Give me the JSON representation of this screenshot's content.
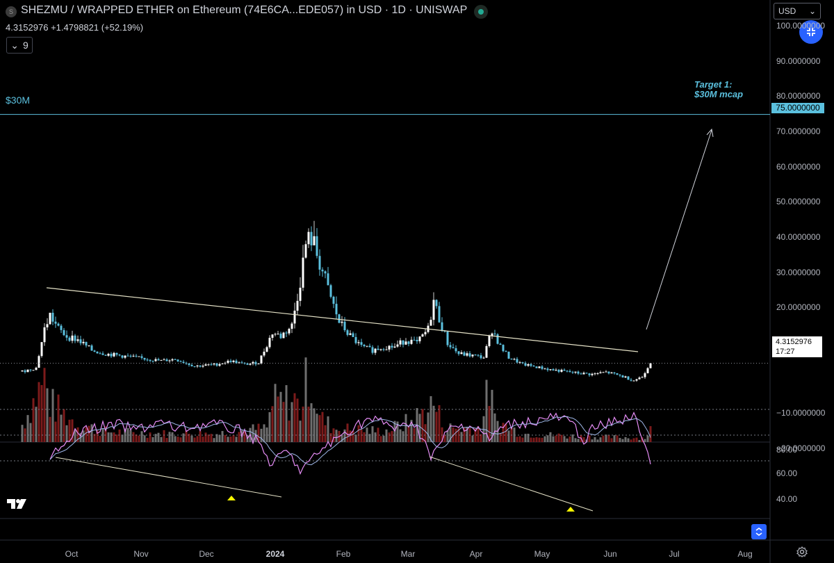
{
  "header": {
    "title": "SHEZMU / WRAPPED ETHER on Ethereum (74E6CA...EDE057) in USD · 1D · UNISWAP",
    "logo_letter": "S",
    "price": "4.3152976",
    "change": "+1.4798821",
    "change_pct": "(+52.19%)",
    "indicators_count": "9",
    "chevron": "⌄"
  },
  "currency_select": {
    "value": "USD",
    "arrow": "⌄"
  },
  "annotations": {
    "level_label": "$30M",
    "target_line1": "Target 1:",
    "target_line2": "$30M mcap",
    "target_badge": "75.0000000"
  },
  "price_badge": {
    "price": "4.3152976",
    "countdown": "17:27"
  },
  "rsi_axis": [
    "80.00",
    "60.00",
    "40.00"
  ],
  "chart_data": {
    "type": "candlestick",
    "title": "SHEZMU / WRAPPED ETHER on Ethereum (74E6CA...EDE057) in USD · 1D · UNISWAP",
    "y_ticks": [
      "100.0000000",
      "90.0000000",
      "80.0000000",
      "70.0000000",
      "60.0000000",
      "50.0000000",
      "40.0000000",
      "30.0000000",
      "20.0000000",
      "10.0000000",
      "−10.0000000",
      "−20.0000000"
    ],
    "y_tick_values": [
      100,
      90,
      80,
      70,
      60,
      50,
      40,
      30,
      20,
      10,
      -10,
      -20
    ],
    "ylim": [
      -27,
      103
    ],
    "x_ticks": [
      "Oct",
      "Nov",
      "Dec",
      "2024",
      "Feb",
      "Mar",
      "Apr",
      "May",
      "Jun",
      "Jul",
      "Aug"
    ],
    "close_anchors": [
      [
        0,
        2
      ],
      [
        5,
        3
      ],
      [
        8,
        14
      ],
      [
        10,
        18
      ],
      [
        13,
        14
      ],
      [
        16,
        12
      ],
      [
        20,
        11
      ],
      [
        25,
        8
      ],
      [
        30,
        7
      ],
      [
        40,
        6
      ],
      [
        50,
        5
      ],
      [
        55,
        5.5
      ],
      [
        62,
        3.5
      ],
      [
        70,
        4
      ],
      [
        75,
        5
      ],
      [
        80,
        4
      ],
      [
        85,
        4.5
      ],
      [
        90,
        13
      ],
      [
        93,
        12
      ],
      [
        97,
        15
      ],
      [
        100,
        28
      ],
      [
        102,
        38
      ],
      [
        104,
        40
      ],
      [
        107,
        33
      ],
      [
        110,
        25
      ],
      [
        114,
        16
      ],
      [
        118,
        12
      ],
      [
        122,
        9
      ],
      [
        126,
        8
      ],
      [
        130,
        9
      ],
      [
        134,
        9
      ],
      [
        138,
        11
      ],
      [
        142,
        10
      ],
      [
        146,
        14
      ],
      [
        148,
        22
      ],
      [
        150,
        17
      ],
      [
        153,
        10
      ],
      [
        157,
        7
      ],
      [
        162,
        6.5
      ],
      [
        166,
        6
      ],
      [
        169,
        14
      ],
      [
        172,
        9
      ],
      [
        175,
        6
      ],
      [
        180,
        4
      ],
      [
        190,
        2.5
      ],
      [
        200,
        1.5
      ],
      [
        205,
        1.2
      ],
      [
        210,
        1.8
      ],
      [
        215,
        0.8
      ],
      [
        220,
        -0.5
      ],
      [
        223,
        0.5
      ],
      [
        225,
        3.2
      ],
      [
        226,
        4.3152976
      ]
    ],
    "volume_anchors": [
      [
        0,
        0.25
      ],
      [
        8,
        0.9
      ],
      [
        10,
        0.55
      ],
      [
        20,
        0.25
      ],
      [
        30,
        0.15
      ],
      [
        50,
        0.12
      ],
      [
        70,
        0.12
      ],
      [
        88,
        0.2
      ],
      [
        90,
        0.55
      ],
      [
        98,
        0.6
      ],
      [
        100,
        0.45
      ],
      [
        103,
        1.0
      ],
      [
        107,
        0.35
      ],
      [
        112,
        0.2
      ],
      [
        130,
        0.15
      ],
      [
        140,
        0.3
      ],
      [
        148,
        0.55
      ],
      [
        152,
        0.2
      ],
      [
        165,
        0.2
      ],
      [
        168,
        0.8
      ],
      [
        170,
        0.3
      ],
      [
        180,
        0.12
      ],
      [
        200,
        0.08
      ],
      [
        224,
        0.06
      ],
      [
        226,
        0.2
      ]
    ],
    "rsi_anchors": [
      [
        10,
        72
      ],
      [
        12,
        62
      ],
      [
        14,
        55
      ],
      [
        18,
        50
      ],
      [
        25,
        45
      ],
      [
        35,
        42
      ],
      [
        40,
        46
      ],
      [
        45,
        43
      ],
      [
        50,
        40
      ],
      [
        55,
        45
      ],
      [
        60,
        44
      ],
      [
        68,
        41
      ],
      [
        75,
        45
      ],
      [
        80,
        47
      ],
      [
        85,
        56
      ],
      [
        88,
        66
      ],
      [
        90,
        75
      ],
      [
        94,
        62
      ],
      [
        98,
        70
      ],
      [
        100,
        78
      ],
      [
        104,
        70
      ],
      [
        108,
        60
      ],
      [
        112,
        55
      ],
      [
        118,
        45
      ],
      [
        124,
        38
      ],
      [
        130,
        40
      ],
      [
        136,
        46
      ],
      [
        140,
        38
      ],
      [
        145,
        55
      ],
      [
        147,
        70
      ],
      [
        150,
        57
      ],
      [
        154,
        45
      ],
      [
        160,
        42
      ],
      [
        165,
        46
      ],
      [
        168,
        55
      ],
      [
        170,
        48
      ],
      [
        175,
        42
      ],
      [
        180,
        40
      ],
      [
        185,
        39
      ],
      [
        190,
        36
      ],
      [
        195,
        38
      ],
      [
        198,
        42
      ],
      [
        200,
        48
      ],
      [
        203,
        55
      ],
      [
        205,
        45
      ],
      [
        210,
        42
      ],
      [
        215,
        38
      ],
      [
        220,
        36
      ],
      [
        223,
        50
      ],
      [
        226,
        70
      ]
    ],
    "rsi_range": [
      20,
      85
    ],
    "rsi_band": [
      30,
      70
    ],
    "rsi_midline": 50,
    "current_price": 4.3152976,
    "target_price": 75,
    "target_level_label": "$30M"
  }
}
